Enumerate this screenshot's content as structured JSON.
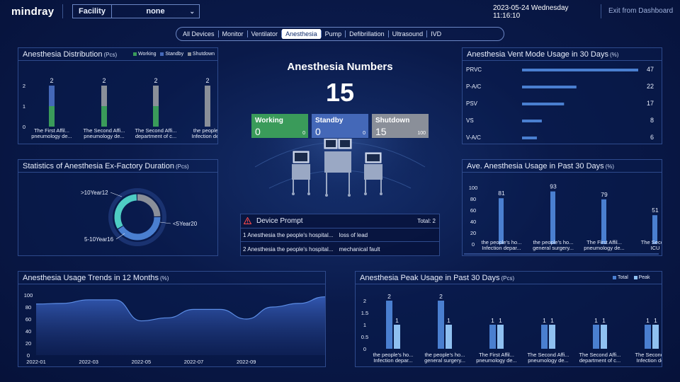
{
  "header": {
    "logo": "mindray",
    "facility_label": "Facility",
    "facility_value": "none",
    "date": "2023-05-24 Wednesday",
    "time": "11:16:10",
    "exit_label": "Exit from Dashboard"
  },
  "tabs": [
    "All Devices",
    "Monitor",
    "Ventilator",
    "Anesthesia",
    "Pump",
    "Defibrillation",
    "Ultrasound",
    "IVD"
  ],
  "active_tab": "Anesthesia",
  "colors": {
    "working": "#3a9b5a",
    "standby": "#4468b8",
    "shutdown": "#8a8f99",
    "accent": "#4a7fd0",
    "teal": "#4ecdc4"
  },
  "distribution": {
    "title": "Anesthesia Distribution",
    "unit": "(Pcs)",
    "legend": [
      "Working",
      "Standby",
      "Shutdown"
    ],
    "chart_data": {
      "type": "bar",
      "stacked": true,
      "categories": [
        "The First Affil...\npneumology de...",
        "The Second Affi...\npneumology de...",
        "The Second Affi...\ndepartment of c...",
        "the people's\nInfection de..."
      ],
      "series": [
        {
          "name": "Working",
          "values": [
            1,
            1,
            1,
            0
          ]
        },
        {
          "name": "Standby",
          "values": [
            1,
            0,
            0,
            0
          ]
        },
        {
          "name": "Shutdown",
          "values": [
            0,
            1,
            1,
            2
          ]
        }
      ],
      "totals": [
        "2",
        "2",
        "2",
        "2"
      ],
      "yticks": [
        "2",
        "1",
        "0"
      ],
      "ylim": [
        0,
        2
      ]
    }
  },
  "exfactory": {
    "title": "Statistics of Anesthesia Ex-Factory Duration",
    "unit": "(Pcs)",
    "chart_data": {
      "type": "pie",
      "labels": [
        ">10Year12",
        "<5Year20",
        "5-10Year16"
      ],
      "values": [
        12,
        20,
        16
      ]
    }
  },
  "center": {
    "title": "Anesthesia Numbers",
    "total": "15",
    "cards": [
      {
        "label": "Working",
        "value": "0",
        "total": "0"
      },
      {
        "label": "Standby",
        "value": "0",
        "total": "0"
      },
      {
        "label": "Shutdown",
        "value": "15",
        "total": "100"
      }
    ]
  },
  "prompt": {
    "title": "Device Prompt",
    "total_text": "Total: 2",
    "rows": [
      {
        "device": "1 Anesthesia the people's hospital...",
        "issue": "loss of lead"
      },
      {
        "device": "2 Anesthesia the people's hospital...",
        "issue": "mechanical fault"
      }
    ]
  },
  "ventmode": {
    "title": "Anesthesia Vent Mode Usage in 30 Days",
    "unit": "(%)",
    "chart_data": {
      "type": "bar",
      "orientation": "horizontal",
      "categories": [
        "PRVC",
        "P-A/C",
        "PSV",
        "VS",
        "V-A/C"
      ],
      "values": [
        47,
        22,
        17,
        8,
        6
      ],
      "value_labels": [
        "47",
        "22",
        "17",
        "8",
        "6"
      ],
      "xlim": [
        0,
        47
      ]
    }
  },
  "aveusage": {
    "title": "Ave. Anesthesia Usage in Past 30 Days",
    "unit": "(%)",
    "chart_data": {
      "type": "bar",
      "categories": [
        "the people's ho...\nInfection depar...",
        "the people's ho...\ngeneral surgery...",
        "The First Affil...\npneumology de...",
        "The Second\nICU"
      ],
      "values": [
        81,
        93,
        79,
        51
      ],
      "value_labels": [
        "81",
        "93",
        "79",
        "51"
      ],
      "yticks": [
        "100",
        "80",
        "60",
        "40",
        "20",
        "0"
      ],
      "ylim": [
        0,
        100
      ]
    }
  },
  "trends": {
    "title": "Anesthesia Usage Trends in 12 Months",
    "unit": "(%)",
    "chart_data": {
      "type": "area",
      "x": [
        "2022-01",
        "2022-02",
        "2022-03",
        "2022-04",
        "2022-05",
        "2022-06",
        "2022-07",
        "2022-08",
        "2022-09",
        "2022-10",
        "2022-11",
        "2022-12"
      ],
      "values": [
        85,
        86,
        92,
        92,
        57,
        62,
        76,
        76,
        60,
        80,
        86,
        97
      ],
      "xticks": [
        "2022-01",
        "2022-03",
        "2022-05",
        "2022-07",
        "2022-09"
      ],
      "yticks": [
        "100",
        "80",
        "60",
        "40",
        "20",
        "0"
      ],
      "ylim": [
        0,
        100
      ]
    }
  },
  "peak": {
    "title": "Anesthesia Peak Usage in Past 30 Days",
    "unit": "(Pcs)",
    "legend": [
      "Total",
      "Peak"
    ],
    "chart_data": {
      "type": "bar",
      "categories": [
        "the people's ho...\nInfection depar...",
        "the people's ho...\ngeneral surgery...",
        "The First Affil...\npneumology de...",
        "The Second Affi...\npneumology de...",
        "The Second Affi...\ndepartment of c...",
        "The Second A\nInfection dep"
      ],
      "series": [
        {
          "name": "Total",
          "values": [
            2,
            2,
            1,
            1,
            1,
            1
          ]
        },
        {
          "name": "Peak",
          "values": [
            1,
            1,
            1,
            1,
            1,
            1
          ]
        }
      ],
      "value_labels": [
        [
          "2",
          "2",
          "1",
          "1",
          "1",
          "1"
        ],
        [
          "1",
          "1",
          "1",
          "1",
          "1",
          "1"
        ]
      ],
      "yticks": [
        "2",
        "1.5",
        "1",
        "0.5",
        "0"
      ],
      "ylim": [
        0,
        2
      ]
    }
  }
}
